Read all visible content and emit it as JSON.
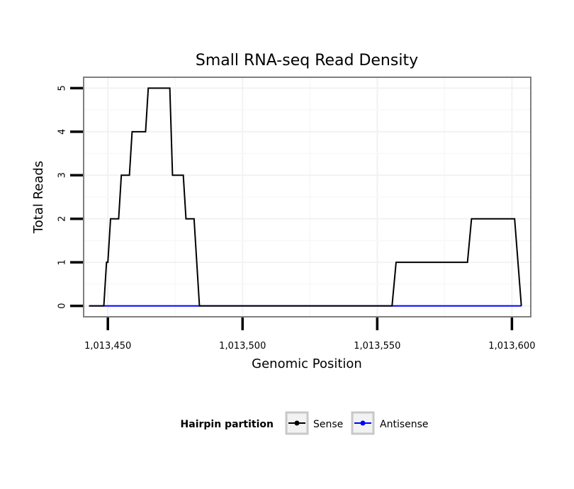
{
  "chart_data": {
    "type": "line",
    "title": "Small RNA-seq Read Density",
    "xlabel": "Genomic Position",
    "ylabel": "Total Reads",
    "xlim": [
      1013441,
      1013607
    ],
    "ylim": [
      -0.25,
      5.25
    ],
    "x_ticks": [
      1013450,
      1013500,
      1013550,
      1013600
    ],
    "x_tick_labels": [
      "1,013,450",
      "1,013,500",
      "1,013,550",
      "1,013,600"
    ],
    "y_ticks": [
      0,
      1,
      2,
      3,
      4,
      5
    ],
    "y_tick_labels": [
      "0",
      "1",
      "2",
      "3",
      "4",
      "5"
    ],
    "grid": true,
    "legend": {
      "title": "Hairpin partition",
      "position": "bottom"
    },
    "series": [
      {
        "name": "Sense",
        "color": "#000000",
        "x": [
          1013443,
          1013448.5,
          1013449.5,
          1013450,
          1013451,
          1013453,
          1013454,
          1013455,
          1013458,
          1013459,
          1013461,
          1013464,
          1013465,
          1013467,
          1013473,
          1013474,
          1013478,
          1013479,
          1013482,
          1013484,
          1013555.5,
          1013557,
          1013583.5,
          1013585,
          1013601,
          1013603.5
        ],
        "y": [
          0,
          0,
          1,
          1,
          2,
          2,
          2,
          3,
          3,
          4,
          4,
          4,
          5,
          5,
          5,
          3,
          3,
          2,
          2,
          0,
          0,
          1,
          1,
          2,
          2,
          0
        ]
      },
      {
        "name": "Antisense",
        "color": "#0000ff",
        "x": [
          1013443,
          1013484,
          1013555.5,
          1013603.5
        ],
        "y": [
          0,
          0,
          0,
          0
        ]
      }
    ]
  }
}
